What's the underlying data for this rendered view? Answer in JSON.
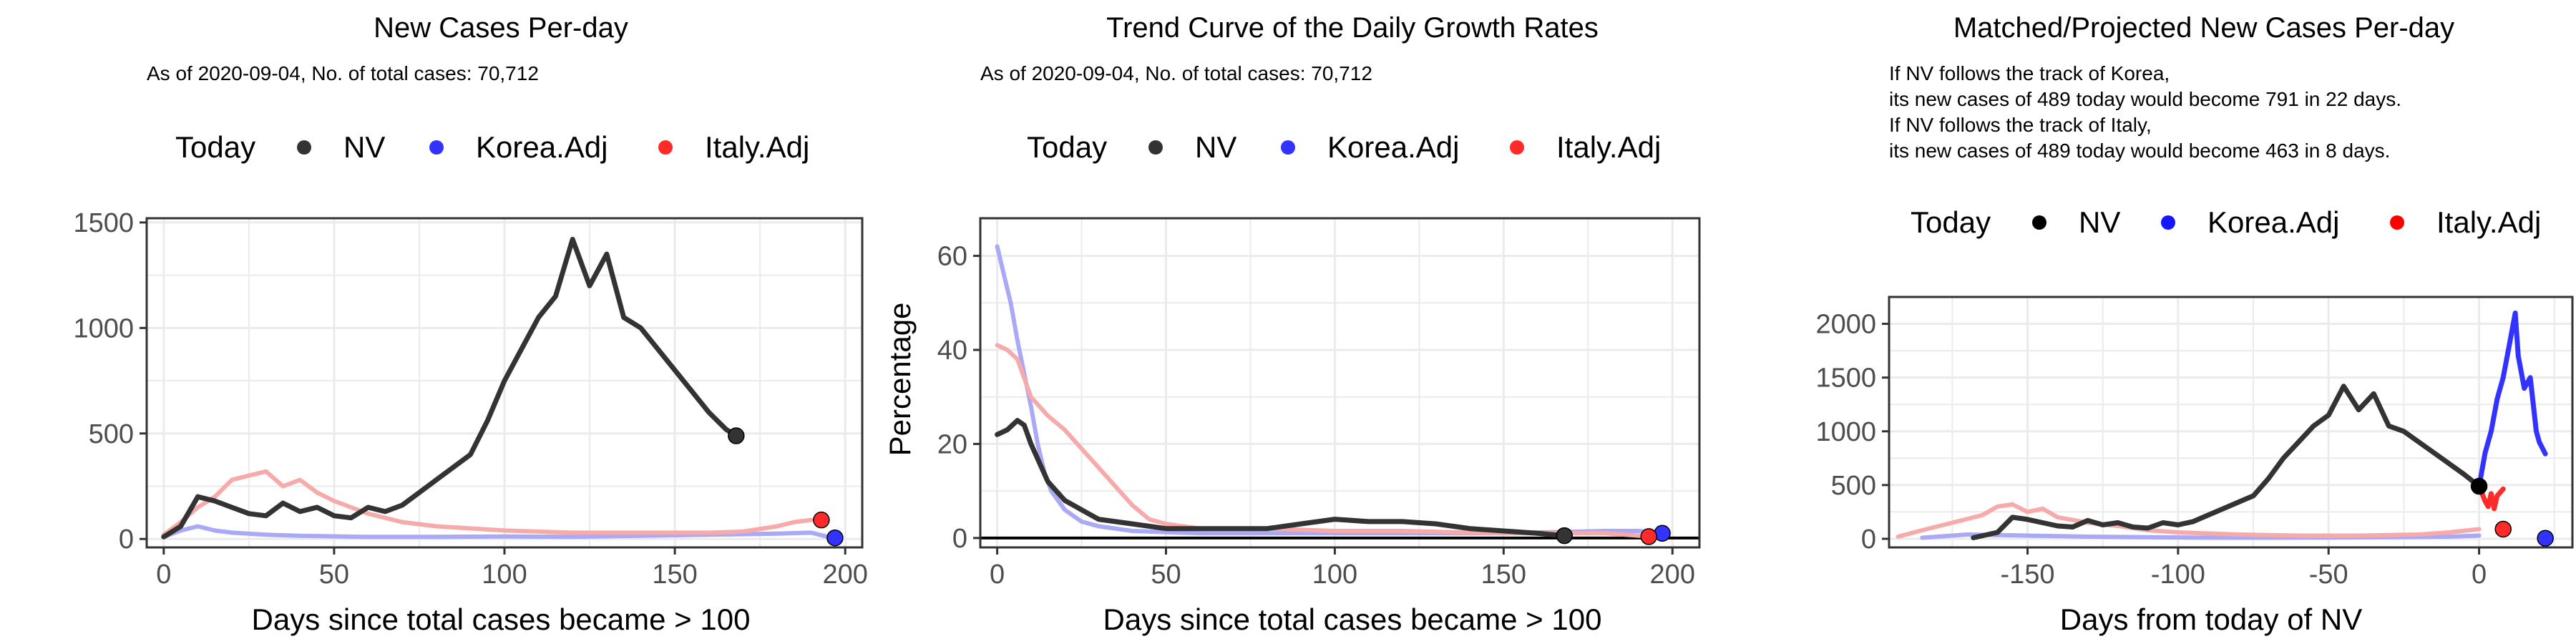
{
  "colors": {
    "nv": "#333333",
    "today_nv": "#000000",
    "korea": "#3333ff",
    "korea_faded": "#a9a9f5",
    "italy": "#ff2a2a",
    "italy_faded": "#f7aaaa",
    "grid": "#ebebeb",
    "panel_border": "#333333"
  },
  "legend": {
    "title": "Today",
    "entries": [
      "NV",
      "Korea.Adj",
      "Italy.Adj"
    ]
  },
  "chart_data": [
    {
      "type": "line",
      "title": "New Cases Per-day",
      "subtitle": "As of 2020-09-04, No. of total cases: 70,712",
      "xlabel": "Days since total cases became > 100",
      "ylabel": "",
      "xlim": [
        -5,
        205
      ],
      "ylim": [
        -40,
        1520
      ],
      "xticks": [
        0,
        50,
        100,
        150,
        200
      ],
      "yticks": [
        0,
        500,
        1000,
        1500
      ],
      "grid": true,
      "legend_position": "top",
      "series": [
        {
          "name": "NV",
          "style": "bold",
          "x": [
            0,
            5,
            10,
            15,
            20,
            25,
            30,
            35,
            40,
            45,
            50,
            55,
            60,
            65,
            70,
            75,
            80,
            85,
            90,
            95,
            100,
            105,
            110,
            115,
            120,
            125,
            130,
            135,
            140,
            145,
            150,
            155,
            160,
            165,
            168
          ],
          "y": [
            10,
            60,
            200,
            180,
            150,
            120,
            110,
            170,
            130,
            150,
            110,
            100,
            150,
            130,
            160,
            220,
            280,
            340,
            400,
            560,
            750,
            900,
            1050,
            1150,
            1420,
            1200,
            1350,
            1050,
            1000,
            900,
            800,
            700,
            600,
            520,
            489
          ]
        },
        {
          "name": "Korea.Adj",
          "style": "faded",
          "x": [
            0,
            5,
            10,
            15,
            20,
            30,
            40,
            60,
            80,
            100,
            120,
            140,
            160,
            180,
            190,
            195
          ],
          "y": [
            10,
            40,
            60,
            40,
            30,
            20,
            15,
            10,
            10,
            12,
            10,
            15,
            20,
            25,
            30,
            10
          ]
        },
        {
          "name": "Italy.Adj",
          "style": "faded",
          "x": [
            0,
            5,
            10,
            15,
            20,
            25,
            30,
            35,
            40,
            45,
            50,
            55,
            60,
            70,
            80,
            100,
            120,
            140,
            160,
            170,
            180,
            185,
            190
          ],
          "y": [
            20,
            80,
            150,
            200,
            280,
            300,
            320,
            250,
            280,
            220,
            180,
            150,
            120,
            80,
            60,
            40,
            30,
            30,
            30,
            35,
            60,
            80,
            90
          ]
        }
      ],
      "today_points": [
        {
          "series": "NV",
          "x": 168,
          "y": 489
        },
        {
          "series": "Korea.Adj",
          "x": 197,
          "y": 5
        },
        {
          "series": "Italy.Adj",
          "x": 193,
          "y": 90
        }
      ]
    },
    {
      "type": "line",
      "title": "Trend Curve of the Daily Growth Rates",
      "subtitle": "As of 2020-09-04, No. of total cases: 70,712",
      "xlabel": "Days since total cases became > 100",
      "ylabel": "Percentage",
      "xlim": [
        -5,
        208
      ],
      "ylim": [
        -2,
        68
      ],
      "xticks": [
        0,
        50,
        100,
        150,
        200
      ],
      "yticks": [
        0,
        20,
        40,
        60
      ],
      "grid": true,
      "hline_y": 0,
      "legend_position": "top",
      "series": [
        {
          "name": "NV",
          "style": "bold",
          "x": [
            0,
            3,
            6,
            8,
            10,
            15,
            20,
            25,
            30,
            40,
            50,
            60,
            70,
            80,
            90,
            100,
            110,
            120,
            130,
            140,
            150,
            160,
            168
          ],
          "y": [
            22,
            23,
            25,
            24,
            20,
            12,
            8,
            6,
            4,
            3,
            2,
            2,
            2,
            2,
            3,
            4,
            3.5,
            3.5,
            3,
            2,
            1.5,
            1,
            0.5
          ]
        },
        {
          "name": "Korea.Adj",
          "style": "faded",
          "x": [
            0,
            2,
            4,
            6,
            8,
            10,
            12,
            14,
            16,
            20,
            25,
            30,
            40,
            60,
            100,
            150,
            180,
            190,
            197
          ],
          "y": [
            62,
            56,
            50,
            42,
            35,
            28,
            20,
            14,
            10,
            6,
            3.5,
            2.5,
            1.5,
            1,
            1,
            1,
            1.5,
            1.5,
            1
          ]
        },
        {
          "name": "Italy.Adj",
          "style": "faded",
          "x": [
            0,
            3,
            6,
            8,
            10,
            15,
            20,
            25,
            30,
            35,
            40,
            45,
            50,
            60,
            80,
            100,
            120,
            150,
            180,
            190,
            193
          ],
          "y": [
            41,
            40,
            38,
            34,
            30,
            26,
            23,
            19,
            15,
            11,
            7,
            4,
            3,
            2,
            2,
            1.5,
            1.5,
            1,
            1,
            0.5,
            0.3
          ]
        }
      ],
      "today_points": [
        {
          "series": "NV",
          "x": 168,
          "y": 0.5
        },
        {
          "series": "Korea.Adj",
          "x": 197,
          "y": 1
        },
        {
          "series": "Italy.Adj",
          "x": 193,
          "y": 0.3
        }
      ]
    },
    {
      "type": "line",
      "title": "Matched/Projected New Cases Per-day",
      "subtitle_lines": [
        "If NV follows the track of Korea,",
        "its new cases of 489 today would become 791 in 22 days.",
        "If NV follows the track of Italy,",
        "its new cases of 489 today would become 463 in 8 days."
      ],
      "xlabel": "Days from today of NV",
      "ylabel": "",
      "xlim": [
        -196,
        31
      ],
      "ylim": [
        -80,
        2250
      ],
      "xticks": [
        -150,
        -100,
        -50,
        0
      ],
      "yticks": [
        0,
        500,
        1000,
        1500,
        2000
      ],
      "grid": true,
      "legend_position": "top",
      "series": [
        {
          "name": "NV",
          "style": "bold",
          "x": [
            -168,
            -160,
            -155,
            -150,
            -145,
            -140,
            -135,
            -130,
            -125,
            -120,
            -115,
            -110,
            -105,
            -100,
            -95,
            -90,
            -85,
            -80,
            -75,
            -70,
            -65,
            -60,
            -55,
            -50,
            -45,
            -40,
            -35,
            -30,
            -25,
            -20,
            -15,
            -10,
            -5,
            0
          ],
          "y": [
            10,
            60,
            200,
            180,
            150,
            120,
            110,
            170,
            130,
            150,
            110,
            100,
            150,
            130,
            160,
            220,
            280,
            340,
            400,
            560,
            750,
            900,
            1050,
            1150,
            1420,
            1200,
            1350,
            1050,
            1000,
            900,
            800,
            700,
            600,
            489
          ]
        },
        {
          "name": "Korea.Adj",
          "style": "faded",
          "x": [
            -185,
            -170,
            -150,
            -130,
            -110,
            -90,
            -70,
            -50,
            -30,
            -10,
            0
          ],
          "y": [
            10,
            40,
            30,
            20,
            15,
            10,
            10,
            12,
            15,
            20,
            30
          ]
        },
        {
          "name": "Korea.Adj projection",
          "style": "bold",
          "x": [
            0,
            2,
            4,
            6,
            8,
            10,
            12,
            13,
            15,
            17,
            19,
            20,
            22
          ],
          "y": [
            489,
            800,
            1000,
            1300,
            1500,
            1800,
            2100,
            1700,
            1400,
            1500,
            1000,
            900,
            791
          ]
        },
        {
          "name": "Italy.Adj",
          "style": "faded",
          "x": [
            -193,
            -185,
            -175,
            -165,
            -160,
            -155,
            -150,
            -145,
            -140,
            -130,
            -120,
            -110,
            -100,
            -80,
            -60,
            -40,
            -20,
            -10,
            0
          ],
          "y": [
            20,
            80,
            150,
            220,
            300,
            320,
            250,
            280,
            200,
            150,
            120,
            80,
            60,
            40,
            30,
            30,
            40,
            60,
            90
          ]
        },
        {
          "name": "Italy.Adj projection",
          "style": "bold",
          "x": [
            0,
            2,
            3,
            4,
            5,
            6,
            8
          ],
          "y": [
            489,
            350,
            300,
            420,
            280,
            400,
            463
          ]
        }
      ],
      "today_points": [
        {
          "series": "NV",
          "x": 0,
          "y": 489
        },
        {
          "series": "Korea.Adj",
          "x": 22,
          "y": 5
        },
        {
          "series": "Italy.Adj",
          "x": 8,
          "y": 90
        }
      ]
    }
  ]
}
